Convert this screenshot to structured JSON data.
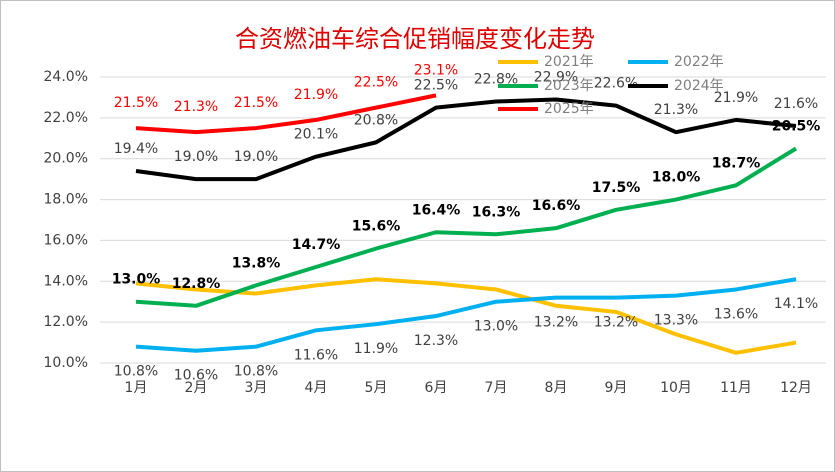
{
  "chart_data": {
    "type": "line",
    "title": "合资燃油车综合促销幅度变化走势",
    "categories": [
      "1月",
      "2月",
      "3月",
      "4月",
      "5月",
      "6月",
      "7月",
      "8月",
      "9月",
      "10月",
      "11月",
      "12月"
    ],
    "ylim": [
      10,
      24
    ],
    "yticks": [
      {
        "value": 10,
        "label": "10.0%"
      },
      {
        "value": 12,
        "label": "12.0%"
      },
      {
        "value": 14,
        "label": "14.0%"
      },
      {
        "value": 16,
        "label": "16.0%"
      },
      {
        "value": 18,
        "label": "18.0%"
      },
      {
        "value": 20,
        "label": "20.0%"
      },
      {
        "value": 22,
        "label": "22.0%"
      },
      {
        "value": 24,
        "label": "24.0%"
      }
    ],
    "grid": true,
    "legend": "top-right",
    "series": [
      {
        "name": "2021年",
        "color": "#FFC000",
        "values": [
          13.9,
          13.6,
          13.4,
          13.8,
          14.1,
          13.9,
          13.6,
          12.8,
          12.5,
          11.4,
          10.5,
          11.0
        ]
      },
      {
        "name": "2022年",
        "color": "#00B0F0",
        "values": [
          10.8,
          10.6,
          10.8,
          11.6,
          11.9,
          12.3,
          13.0,
          13.2,
          13.2,
          13.3,
          13.6,
          14.1
        ],
        "value_labels": [
          "10.8%",
          "10.6%",
          "10.8%",
          "11.6%",
          "11.9%",
          "12.3%",
          "13.0%",
          "13.2%",
          "13.2%",
          "13.3%",
          "13.6%",
          "14.1%"
        ]
      },
      {
        "name": "2023年",
        "color": "#00B050",
        "values": [
          13.0,
          12.8,
          13.8,
          14.7,
          15.6,
          16.4,
          16.3,
          16.6,
          17.5,
          18.0,
          18.7,
          20.5
        ],
        "value_labels": [
          "13.0%",
          "12.8%",
          "13.8%",
          "14.7%",
          "15.6%",
          "16.4%",
          "16.3%",
          "16.6%",
          "17.5%",
          "18.0%",
          "18.7%",
          "20.5%"
        ]
      },
      {
        "name": "2024年",
        "color": "#000000",
        "values": [
          19.4,
          19.0,
          19.0,
          20.1,
          20.8,
          22.5,
          22.8,
          22.9,
          22.6,
          21.3,
          21.9,
          21.6
        ],
        "value_labels": [
          "19.4%",
          "19.0%",
          "19.0%",
          "20.1%",
          "20.8%",
          "22.5%",
          "22.8%",
          "22.9%",
          "22.6%",
          "21.3%",
          "21.9%",
          "21.6%"
        ]
      },
      {
        "name": "2025年",
        "color": "#FF0000",
        "values": [
          21.5,
          21.3,
          21.5,
          21.9,
          22.5,
          23.1,
          null,
          null,
          null,
          null,
          null,
          null
        ],
        "value_labels": [
          "21.5%",
          "21.3%",
          "21.5%",
          "21.9%",
          "22.5%",
          "23.1%",
          null,
          null,
          null,
          null,
          null,
          null
        ]
      }
    ]
  }
}
